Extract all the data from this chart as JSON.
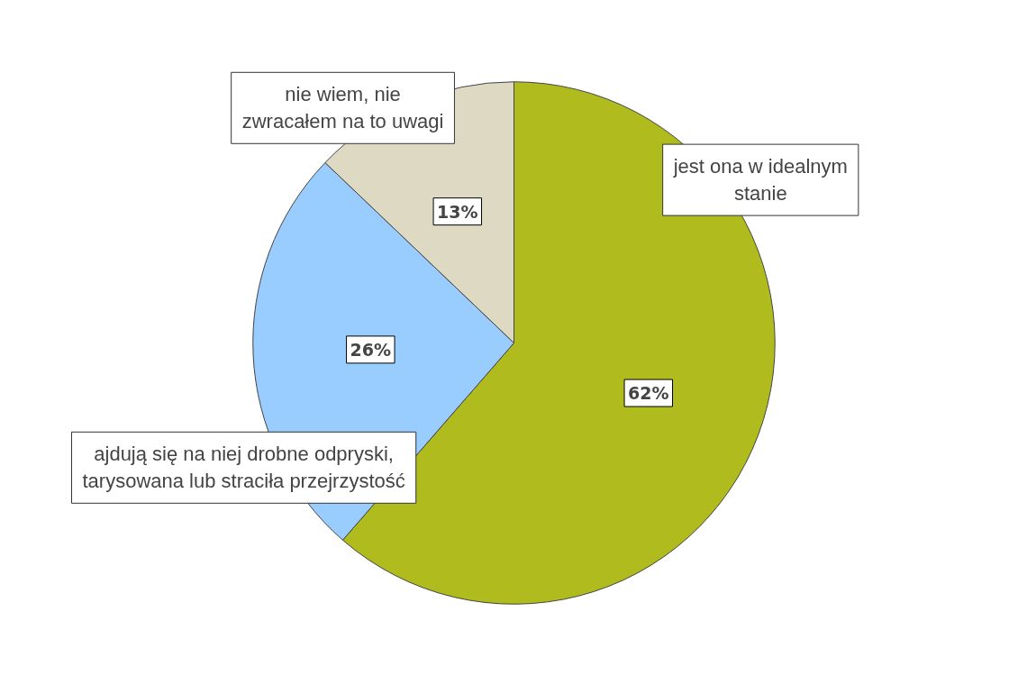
{
  "chart_data": {
    "type": "pie",
    "categories": [
      "jest ona w idealnym stanie",
      "ajdują się na niej drobne odpryski, tarysowana lub straciła przejrzystość",
      "nie wiem, nie zwracałem na to uwagi"
    ],
    "values": [
      62,
      26,
      13
    ],
    "colors": [
      "#b0bb1e",
      "#99ccff",
      "#ddd9c3"
    ],
    "value_labels": [
      "62%",
      "26%",
      "13%"
    ]
  }
}
